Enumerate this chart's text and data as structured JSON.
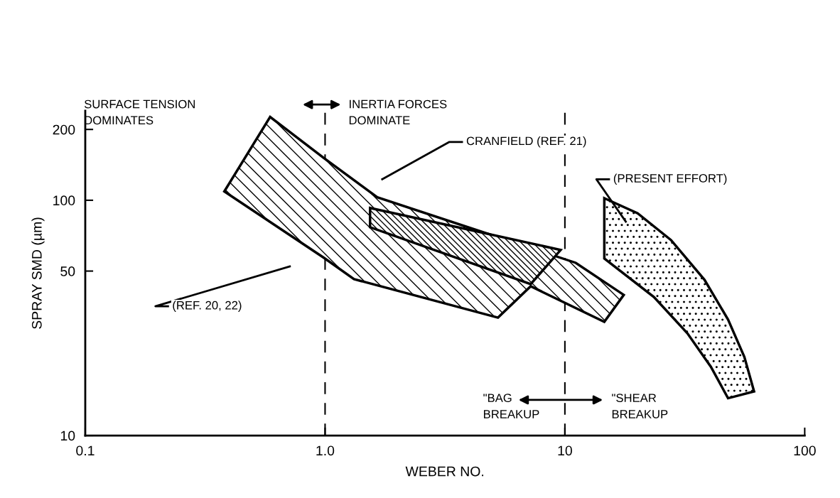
{
  "chart_data": {
    "type": "area",
    "xlabel": "WEBER NO.",
    "ylabel": "SPRAY SMD (µm)",
    "log": "xy",
    "grid": false,
    "xlim": [
      0.1,
      100
    ],
    "ylim": [
      10,
      240
    ],
    "xticks": [
      {
        "value": 0.1,
        "label": "0.1"
      },
      {
        "value": 1,
        "label": "1.0"
      },
      10,
      100
    ],
    "yticks": [
      10,
      50,
      100,
      200
    ],
    "series": [
      {
        "color": "#000000",
        "x": [
          0.38,
          0.59,
          0.99,
          1.65,
          11.1,
          17.6,
          14.6,
          7.2,
          5.26,
          1.32,
          0.99
        ],
        "values": [
          109,
          226,
          151,
          103,
          54.2,
          39.6,
          30.4,
          43.1,
          31.7,
          46.2,
          56.9
        ]
      },
      {
        "color": "#000000",
        "x": [
          1.54,
          9.6,
          7.2,
          1.54
        ],
        "values": [
          92.7,
          61.5,
          44,
          76.8
        ]
      },
      {
        "color": "#000000",
        "x": [
          14.6,
          20.1,
          27.7,
          38.2,
          47.9,
          56.0,
          61.5,
          47.9,
          40.6,
          32.4,
          23.5,
          14.6
        ],
        "values": [
          102,
          88,
          67.7,
          45.9,
          31.1,
          21.6,
          15.4,
          14.4,
          19.6,
          27.2,
          38.8,
          56.5
        ]
      }
    ],
    "ref_lines": [
      {
        "axis": "x",
        "value": 1,
        "color": "#000000",
        "line_style": "dashed"
      },
      {
        "axis": "x",
        "value": 10,
        "color": "#000000",
        "line_style": "dashed"
      }
    ],
    "annotations": [
      "SURFACE TENSION\nDOMINATES",
      "INERTIA FORCES\nDOMINATE",
      "\"BAG\nBREAKUP",
      "\"SHEAR\nBREAKUP",
      "(REF. 20, 22)",
      "CRANFIELD (REF. 21)",
      "(PRESENT EFFORT)"
    ]
  }
}
